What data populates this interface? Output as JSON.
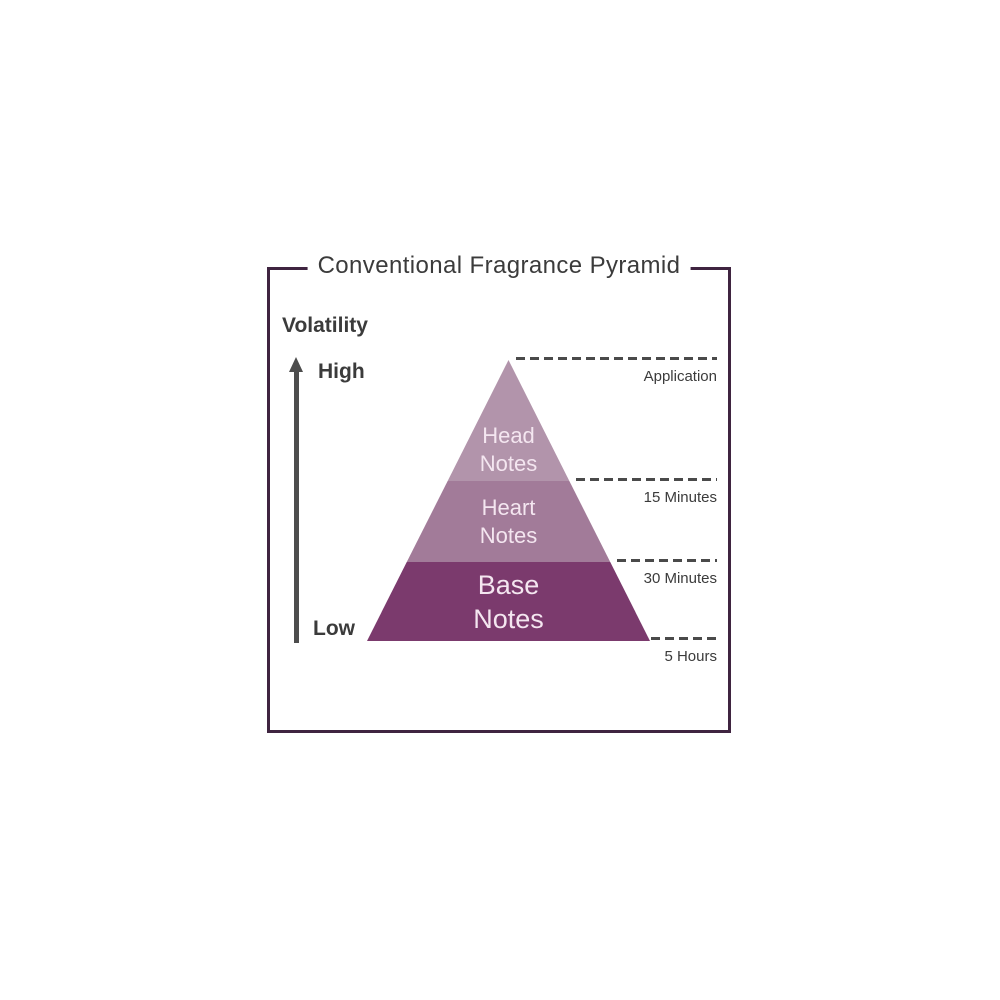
{
  "title": "Conventional Fragrance Pyramid",
  "axis": {
    "label": "Volatility",
    "high_label": "High",
    "low_label": "Low"
  },
  "pyramid": {
    "layers": [
      {
        "name": "Head Notes",
        "line1": "Head",
        "line2": "Notes",
        "color": "#b294ab"
      },
      {
        "name": "Heart Notes",
        "line1": "Heart",
        "line2": "Notes",
        "color": "#a27b99"
      },
      {
        "name": "Base Notes",
        "line1": "Base",
        "line2": "Notes",
        "color": "#7b3a6d"
      }
    ],
    "label_text_color": "#f4e6f0"
  },
  "timeline": {
    "markers": [
      {
        "label": "Application"
      },
      {
        "label": "15 Minutes"
      },
      {
        "label": "30 Minutes"
      },
      {
        "label": "5 Hours"
      }
    ]
  },
  "colors": {
    "frame_border": "#3f2440",
    "title_text": "#3b3b3b",
    "dashed_line": "#4a4a4a",
    "arrow": "#4d4d4d",
    "background": "#ffffff"
  }
}
